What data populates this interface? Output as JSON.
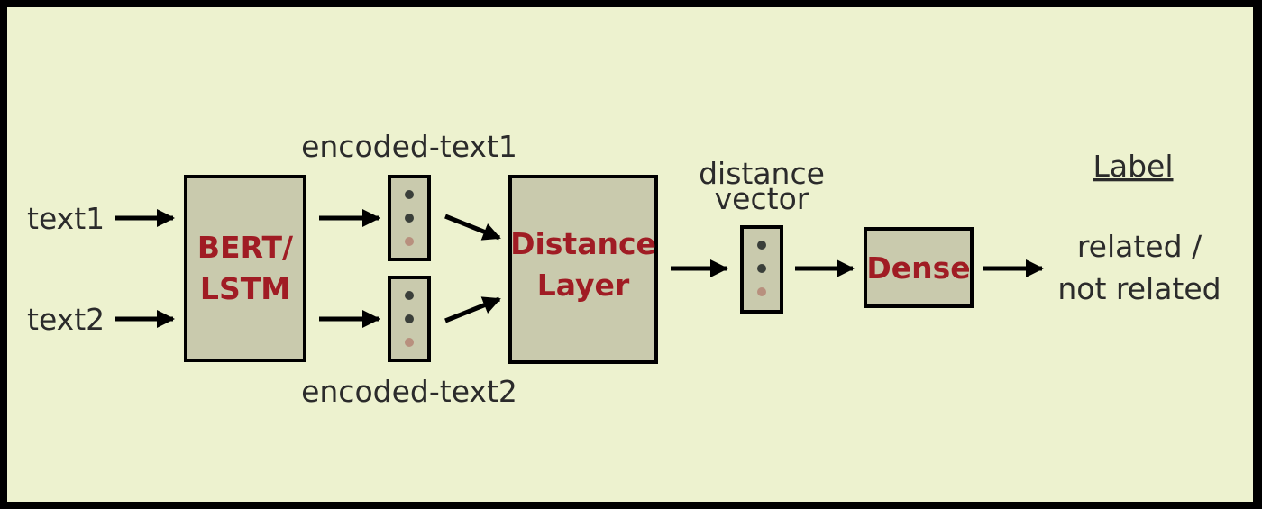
{
  "inputs": {
    "text1": "text1",
    "text2": "text2"
  },
  "encoder": {
    "line1": "BERT/",
    "line2": "LSTM"
  },
  "encoded": {
    "top": "encoded-text1",
    "bottom": "encoded-text2"
  },
  "distance_layer": {
    "line1": "Distance",
    "line2": "Layer"
  },
  "distance_vector": {
    "line1": "distance",
    "line2": "vector"
  },
  "dense": {
    "label": "Dense"
  },
  "output": {
    "heading": "Label",
    "line1": "related /",
    "line2": "not related"
  },
  "colors": {
    "background": "#edf2cf",
    "box_fill": "#c9caad",
    "box_text": "#a01c24",
    "dot_dark": "#3a3f3a",
    "dot_light": "#b8907e"
  }
}
